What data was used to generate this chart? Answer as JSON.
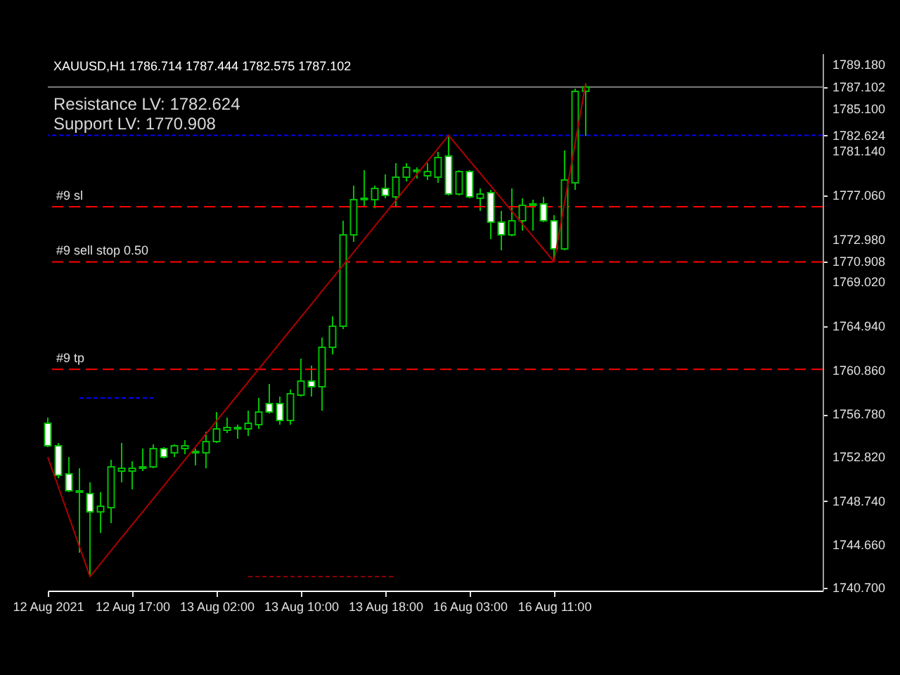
{
  "chart_data": {
    "type": "candlestick",
    "title": "XAUUSD,H1  1786.714 1787.444 1782.575 1787.102",
    "annotations": [
      "Resistance LV: 1782.624",
      "Support LV: 1770.908"
    ],
    "categories": [
      "12 Aug 2021",
      null,
      null,
      null,
      null,
      null,
      null,
      null,
      "12 Aug 17:00",
      null,
      null,
      null,
      null,
      null,
      null,
      null,
      "13 Aug 02:00",
      null,
      null,
      null,
      null,
      null,
      null,
      null,
      "13 Aug 10:00",
      null,
      null,
      null,
      null,
      null,
      null,
      null,
      "13 Aug 18:00",
      null,
      null,
      null,
      null,
      null,
      null,
      null,
      "16 Aug 03:00",
      null,
      null,
      null,
      null,
      null,
      null,
      null,
      "16 Aug 11:00",
      null,
      null,
      null
    ],
    "ohlc": [
      [
        1755.95,
        1756.47,
        1753.73,
        1753.86
      ],
      [
        1753.86,
        1754.12,
        1750.87,
        1751.13
      ],
      [
        1751.26,
        1752.82,
        1749.56,
        1749.69
      ],
      [
        1749.69,
        1751.78,
        1743.96,
        1749.56
      ],
      [
        1749.43,
        1750.48,
        1741.74,
        1747.74
      ],
      [
        1747.74,
        1749.56,
        1745.78,
        1748.26
      ],
      [
        1748.13,
        1752.56,
        1746.7,
        1751.91
      ],
      [
        1751.52,
        1754.12,
        1750.48,
        1751.78
      ],
      [
        1751.52,
        1752.43,
        1749.82,
        1751.78
      ],
      [
        1751.78,
        1753.6,
        1751.52,
        1751.91
      ],
      [
        1751.91,
        1753.99,
        1751.78,
        1753.6
      ],
      [
        1753.6,
        1753.73,
        1752.69,
        1752.82
      ],
      [
        1753.21,
        1753.99,
        1752.82,
        1753.86
      ],
      [
        1753.6,
        1754.39,
        1753.08,
        1753.86
      ],
      [
        1753.34,
        1753.6,
        1752.04,
        1753.21
      ],
      [
        1753.21,
        1755.17,
        1751.78,
        1754.26
      ],
      [
        1754.26,
        1756.99,
        1754.12,
        1755.43
      ],
      [
        1755.3,
        1756.47,
        1755.04,
        1755.56
      ],
      [
        1755.43,
        1755.82,
        1754.52,
        1755.56
      ],
      [
        1755.43,
        1757.12,
        1754.78,
        1755.95
      ],
      [
        1755.82,
        1758.29,
        1755.43,
        1756.99
      ],
      [
        1757.77,
        1759.6,
        1756.85,
        1756.99
      ],
      [
        1757.77,
        1758.43,
        1755.82,
        1756.21
      ],
      [
        1756.21,
        1759.08,
        1755.82,
        1758.69
      ],
      [
        1758.56,
        1761.94,
        1758.43,
        1759.86
      ],
      [
        1759.86,
        1761.29,
        1758.43,
        1759.34
      ],
      [
        1759.34,
        1763.9,
        1757.12,
        1762.99
      ],
      [
        1762.99,
        1765.85,
        1762.33,
        1764.94
      ],
      [
        1764.94,
        1774.72,
        1764.68,
        1773.41
      ],
      [
        1773.41,
        1777.97,
        1772.76,
        1776.67
      ],
      [
        1776.67,
        1779.41,
        1776.02,
        1776.8
      ],
      [
        1776.67,
        1777.97,
        1775.89,
        1777.71
      ],
      [
        1777.71,
        1779.02,
        1776.8,
        1777.06
      ],
      [
        1776.93,
        1780.06,
        1776.02,
        1778.76
      ],
      [
        1778.76,
        1780.06,
        1778.36,
        1779.67
      ],
      [
        1779.28,
        1779.67,
        1778.62,
        1779.41
      ],
      [
        1778.89,
        1780.06,
        1778.49,
        1779.28
      ],
      [
        1778.76,
        1781.1,
        1778.23,
        1780.58
      ],
      [
        1780.71,
        1782.62,
        1777.06,
        1777.19
      ],
      [
        1777.19,
        1779.41,
        1777.06,
        1779.28
      ],
      [
        1779.28,
        1779.41,
        1776.8,
        1776.93
      ],
      [
        1776.8,
        1777.71,
        1775.63,
        1777.19
      ],
      [
        1777.32,
        1777.58,
        1773.02,
        1774.58
      ],
      [
        1774.58,
        1775.63,
        1771.98,
        1773.41
      ],
      [
        1773.41,
        1777.71,
        1773.28,
        1774.72
      ],
      [
        1774.72,
        1776.8,
        1773.8,
        1776.15
      ],
      [
        1776.15,
        1776.67,
        1773.8,
        1776.28
      ],
      [
        1776.28,
        1776.93,
        1774.58,
        1774.72
      ],
      [
        1774.72,
        1775.24,
        1770.91,
        1772.11
      ],
      [
        1772.11,
        1781.23,
        1771.98,
        1778.49
      ],
      [
        1778.23,
        1786.96,
        1777.58,
        1786.7
      ],
      [
        1786.714,
        1787.444,
        1782.575,
        1787.102
      ]
    ],
    "color": "#00c000",
    "colors": [
      "#ffffff",
      "#ffffff",
      "#ffffff",
      "#ffffff",
      "#ffffff",
      "#000000",
      "#000000",
      "#000000",
      "#000000",
      "#000000",
      "#000000",
      "#ffffff",
      "#000000",
      "#000000",
      "#ffffff",
      "#000000",
      "#000000",
      "#000000",
      "#000000",
      "#000000",
      "#000000",
      "#ffffff",
      "#ffffff",
      "#000000",
      "#000000",
      "#ffffff",
      "#000000",
      "#000000",
      "#000000",
      "#000000",
      "#000000",
      "#000000",
      "#ffffff",
      "#000000",
      "#000000",
      "#000000",
      "#000000",
      "#000000",
      "#ffffff",
      "#000000",
      "#ffffff",
      "#000000",
      "#ffffff",
      "#ffffff",
      "#000000",
      "#000000",
      "#000000",
      "#ffffff",
      "#ffffff",
      "#000000",
      "#000000",
      "#000000"
    ],
    "series": [
      {
        "type": "line",
        "color": "#b00000",
        "line_style": "solid",
        "values": [
          1752.82,
          1750.05,
          1747.28,
          1744.51,
          1741.74,
          1742.94,
          1744.14,
          1745.35,
          1746.55,
          1747.75,
          1748.95,
          1750.16,
          1751.36,
          1752.56,
          1753.76,
          1754.97,
          1756.17,
          1757.37,
          1758.57,
          1759.78,
          1760.98,
          1762.18,
          1763.38,
          1764.59,
          1765.79,
          1766.99,
          1768.2,
          1769.4,
          1770.6,
          1771.8,
          1773.01,
          1774.21,
          1775.41,
          1776.61,
          1777.82,
          1779.02,
          1780.22,
          1781.42,
          1782.62,
          1781.45,
          1780.28,
          1779.11,
          1777.94,
          1776.77,
          1775.6,
          1774.43,
          1773.26,
          1772.09,
          1770.91,
          1776.42,
          1781.93,
          1787.44
        ]
      },
      {
        "type": "line",
        "color": "#0000ff",
        "line_style": "dotted",
        "values": [
          null,
          null,
          null,
          1758.29,
          1758.29,
          1758.29,
          1758.29,
          1758.29,
          1758.29,
          1758.29,
          1758.29,
          null,
          null,
          null,
          null,
          null,
          null,
          null,
          null,
          null,
          null,
          null,
          null,
          null,
          null,
          null,
          null,
          null,
          null,
          null,
          null,
          null,
          null,
          null,
          null,
          null,
          null,
          null,
          null,
          null,
          null,
          null,
          null,
          null,
          null,
          null,
          null,
          null,
          null,
          null,
          null,
          null
        ]
      },
      {
        "type": "line",
        "color": "#8b0000",
        "line_style": "dotted",
        "values": [
          null,
          null,
          null,
          null,
          null,
          null,
          null,
          null,
          null,
          null,
          null,
          null,
          null,
          null,
          null,
          null,
          null,
          null,
          null,
          1741.74,
          1741.74,
          1741.74,
          1741.74,
          1741.74,
          1741.74,
          1741.74,
          1741.74,
          1741.74,
          1741.74,
          1741.74,
          1741.74,
          1741.74,
          1741.74,
          1741.74,
          null,
          null,
          null,
          null,
          null,
          null,
          null,
          null,
          null,
          null,
          null,
          null,
          null,
          null,
          null,
          null,
          null,
          null
        ]
      }
    ],
    "ref_lines": [
      {
        "axis": "y",
        "value": 1787.102,
        "color": "#808080",
        "line_style": "solid"
      },
      {
        "axis": "y",
        "value": 1782.624,
        "color": "#0000ff",
        "line_style": "dotted"
      },
      {
        "axis": "y",
        "value": 1776.02,
        "label": "#9 sl",
        "color": "#ff0000",
        "line_style": "dashed"
      },
      {
        "axis": "y",
        "value": 1770.908,
        "label": "#9 sell stop 0.50",
        "color": "#ff0000",
        "line_style": "dashed"
      },
      {
        "axis": "y",
        "value": 1760.95,
        "label": "#9 tp",
        "color": "#ff0000",
        "line_style": "dashed"
      }
    ],
    "ylim": [
      1740.44,
      1790.22
    ],
    "yticks": [
      {
        "value": 1789.18,
        "label": "1789.180"
      },
      {
        "value": 1787.102,
        "label": "1787.102"
      },
      {
        "value": 1785.1,
        "label": "1785.100"
      },
      {
        "value": 1782.624,
        "label": "1782.624"
      },
      {
        "value": 1781.14,
        "label": "1781.140"
      },
      {
        "value": 1777.06,
        "label": "1777.060"
      },
      {
        "value": 1772.98,
        "label": "1772.980"
      },
      {
        "value": 1770.908,
        "label": "1770.908"
      },
      {
        "value": 1769.02,
        "label": "1769.020"
      },
      {
        "value": 1764.94,
        "label": "1764.940"
      },
      {
        "value": 1760.86,
        "label": "1760.860"
      },
      {
        "value": 1756.78,
        "label": "1756.780"
      },
      {
        "value": 1752.82,
        "label": "1752.820"
      },
      {
        "value": 1748.74,
        "label": "1748.740"
      },
      {
        "value": 1744.66,
        "label": "1744.660"
      },
      {
        "value": 1740.7,
        "label": "1740.700"
      }
    ],
    "grid": false
  }
}
